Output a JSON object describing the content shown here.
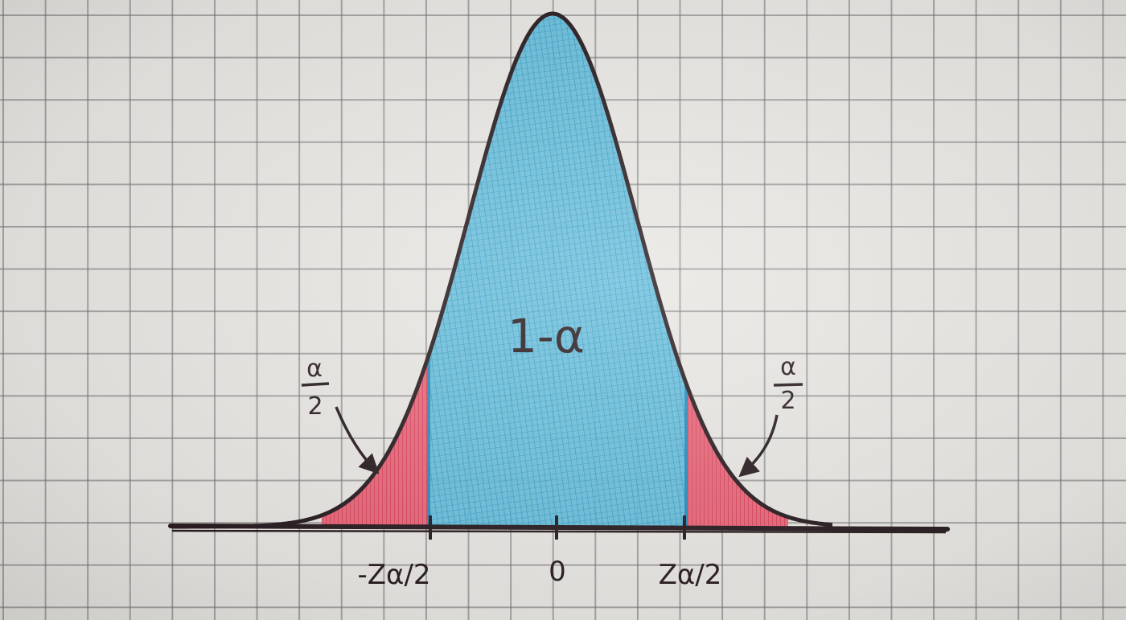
{
  "diagram": {
    "type": "normal-distribution-two-tailed",
    "colors": {
      "center_region": "#3aa8cf",
      "tail_region": "#e0566b",
      "ink": "#2a1e22",
      "paper": "#e9e7e3",
      "grid": "#6e6e70"
    },
    "center_area_label": "1-α",
    "tick_labels": {
      "left": "-Zα/2",
      "center": "0",
      "right": "Zα/2"
    },
    "tail_labels": {
      "left": {
        "numerator": "α",
        "denominator": "2"
      },
      "right": {
        "numerator": "α",
        "denominator": "2"
      }
    }
  }
}
